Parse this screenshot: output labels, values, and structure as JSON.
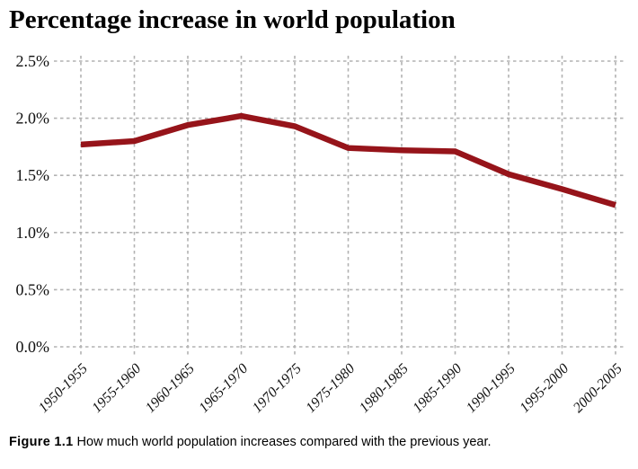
{
  "title": "Percentage increase in world population",
  "caption": {
    "label": "Figure 1.1",
    "text": "How much world population increases compared with the previous year."
  },
  "colors": {
    "line": "#96141a",
    "grid": "#b2b2b2",
    "text": "#111111",
    "background": "#ffffff"
  },
  "chart_data": {
    "type": "line",
    "title": "Percentage increase in world population",
    "categories": [
      "1950-1955",
      "1955-1960",
      "1960-1965",
      "1965-1970",
      "1970-1975",
      "1975-1980",
      "1980-1985",
      "1985-1990",
      "1990-1995",
      "1995-2000",
      "2000-2005"
    ],
    "values": [
      1.77,
      1.8,
      1.94,
      2.02,
      1.93,
      1.74,
      1.72,
      1.71,
      1.51,
      1.38,
      1.24
    ],
    "unit": "%",
    "xlabel": "",
    "ylabel": "",
    "ylim": [
      0,
      2.5
    ],
    "ytick_interval": 0.5,
    "yticks": [
      "0.0%",
      "0.5%",
      "1.0%",
      "1.5%",
      "2.0%",
      "2.5%"
    ],
    "grid": "dashed",
    "legend": "none",
    "line_width": 6.5
  }
}
